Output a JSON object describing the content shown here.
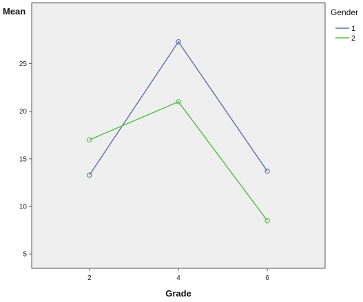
{
  "chart_data": {
    "type": "line",
    "xlabel": "Grade",
    "ylabel": "Mean",
    "x": [
      2,
      4,
      6
    ],
    "xlim": [
      0.7,
      7.3
    ],
    "ylim": [
      3.5,
      31.4
    ],
    "xticks": [
      "2",
      "4",
      "6"
    ],
    "yticks": [
      "5",
      "10",
      "15",
      "20",
      "25"
    ],
    "grid": false,
    "legend": {
      "title": "Gender",
      "placement": "right-top"
    },
    "plot_background": "#efefef",
    "series": [
      {
        "name": "1",
        "color": "#5b6fae",
        "values": [
          13.3,
          27.3,
          13.7
        ]
      },
      {
        "name": "2",
        "color": "#4bbf3f",
        "values": [
          17.0,
          21.0,
          8.5
        ]
      }
    ]
  }
}
